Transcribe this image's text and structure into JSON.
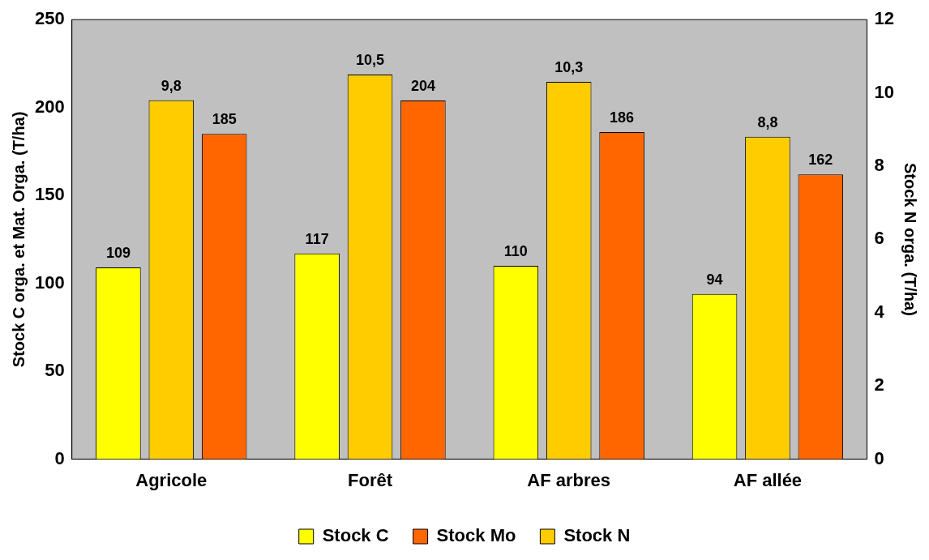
{
  "chart_data": {
    "type": "bar",
    "ylabel": "Stock C orga. et Mat. Orga. (T/ha)",
    "y2label": "Stock N orga. (T/ha)",
    "categories": [
      "Agricole",
      "Forêt",
      "AF arbres",
      "AF allée"
    ],
    "series": [
      {
        "name": "Stock C",
        "color": "#ffff00",
        "values": [
          109,
          117,
          110,
          94
        ]
      },
      {
        "name": "Stock N",
        "color": "#ffcc00",
        "axis": "y2",
        "values": [
          9.8,
          10.5,
          10.3,
          8.8
        ],
        "value_labels": [
          "9,8",
          "10,5",
          "10,3",
          "8,8"
        ]
      },
      {
        "name": "Stock Mo",
        "color": "#ff6600",
        "values": [
          185,
          204,
          186,
          162
        ]
      }
    ],
    "ylim": [
      0,
      250
    ],
    "yticks": [
      0,
      50,
      100,
      150,
      200,
      250
    ],
    "y2lim": [
      0,
      12
    ],
    "y2ticks": [
      0,
      2,
      4,
      6,
      8,
      10,
      12
    ],
    "data_labels": true,
    "grid": false,
    "legend": "bottom"
  }
}
